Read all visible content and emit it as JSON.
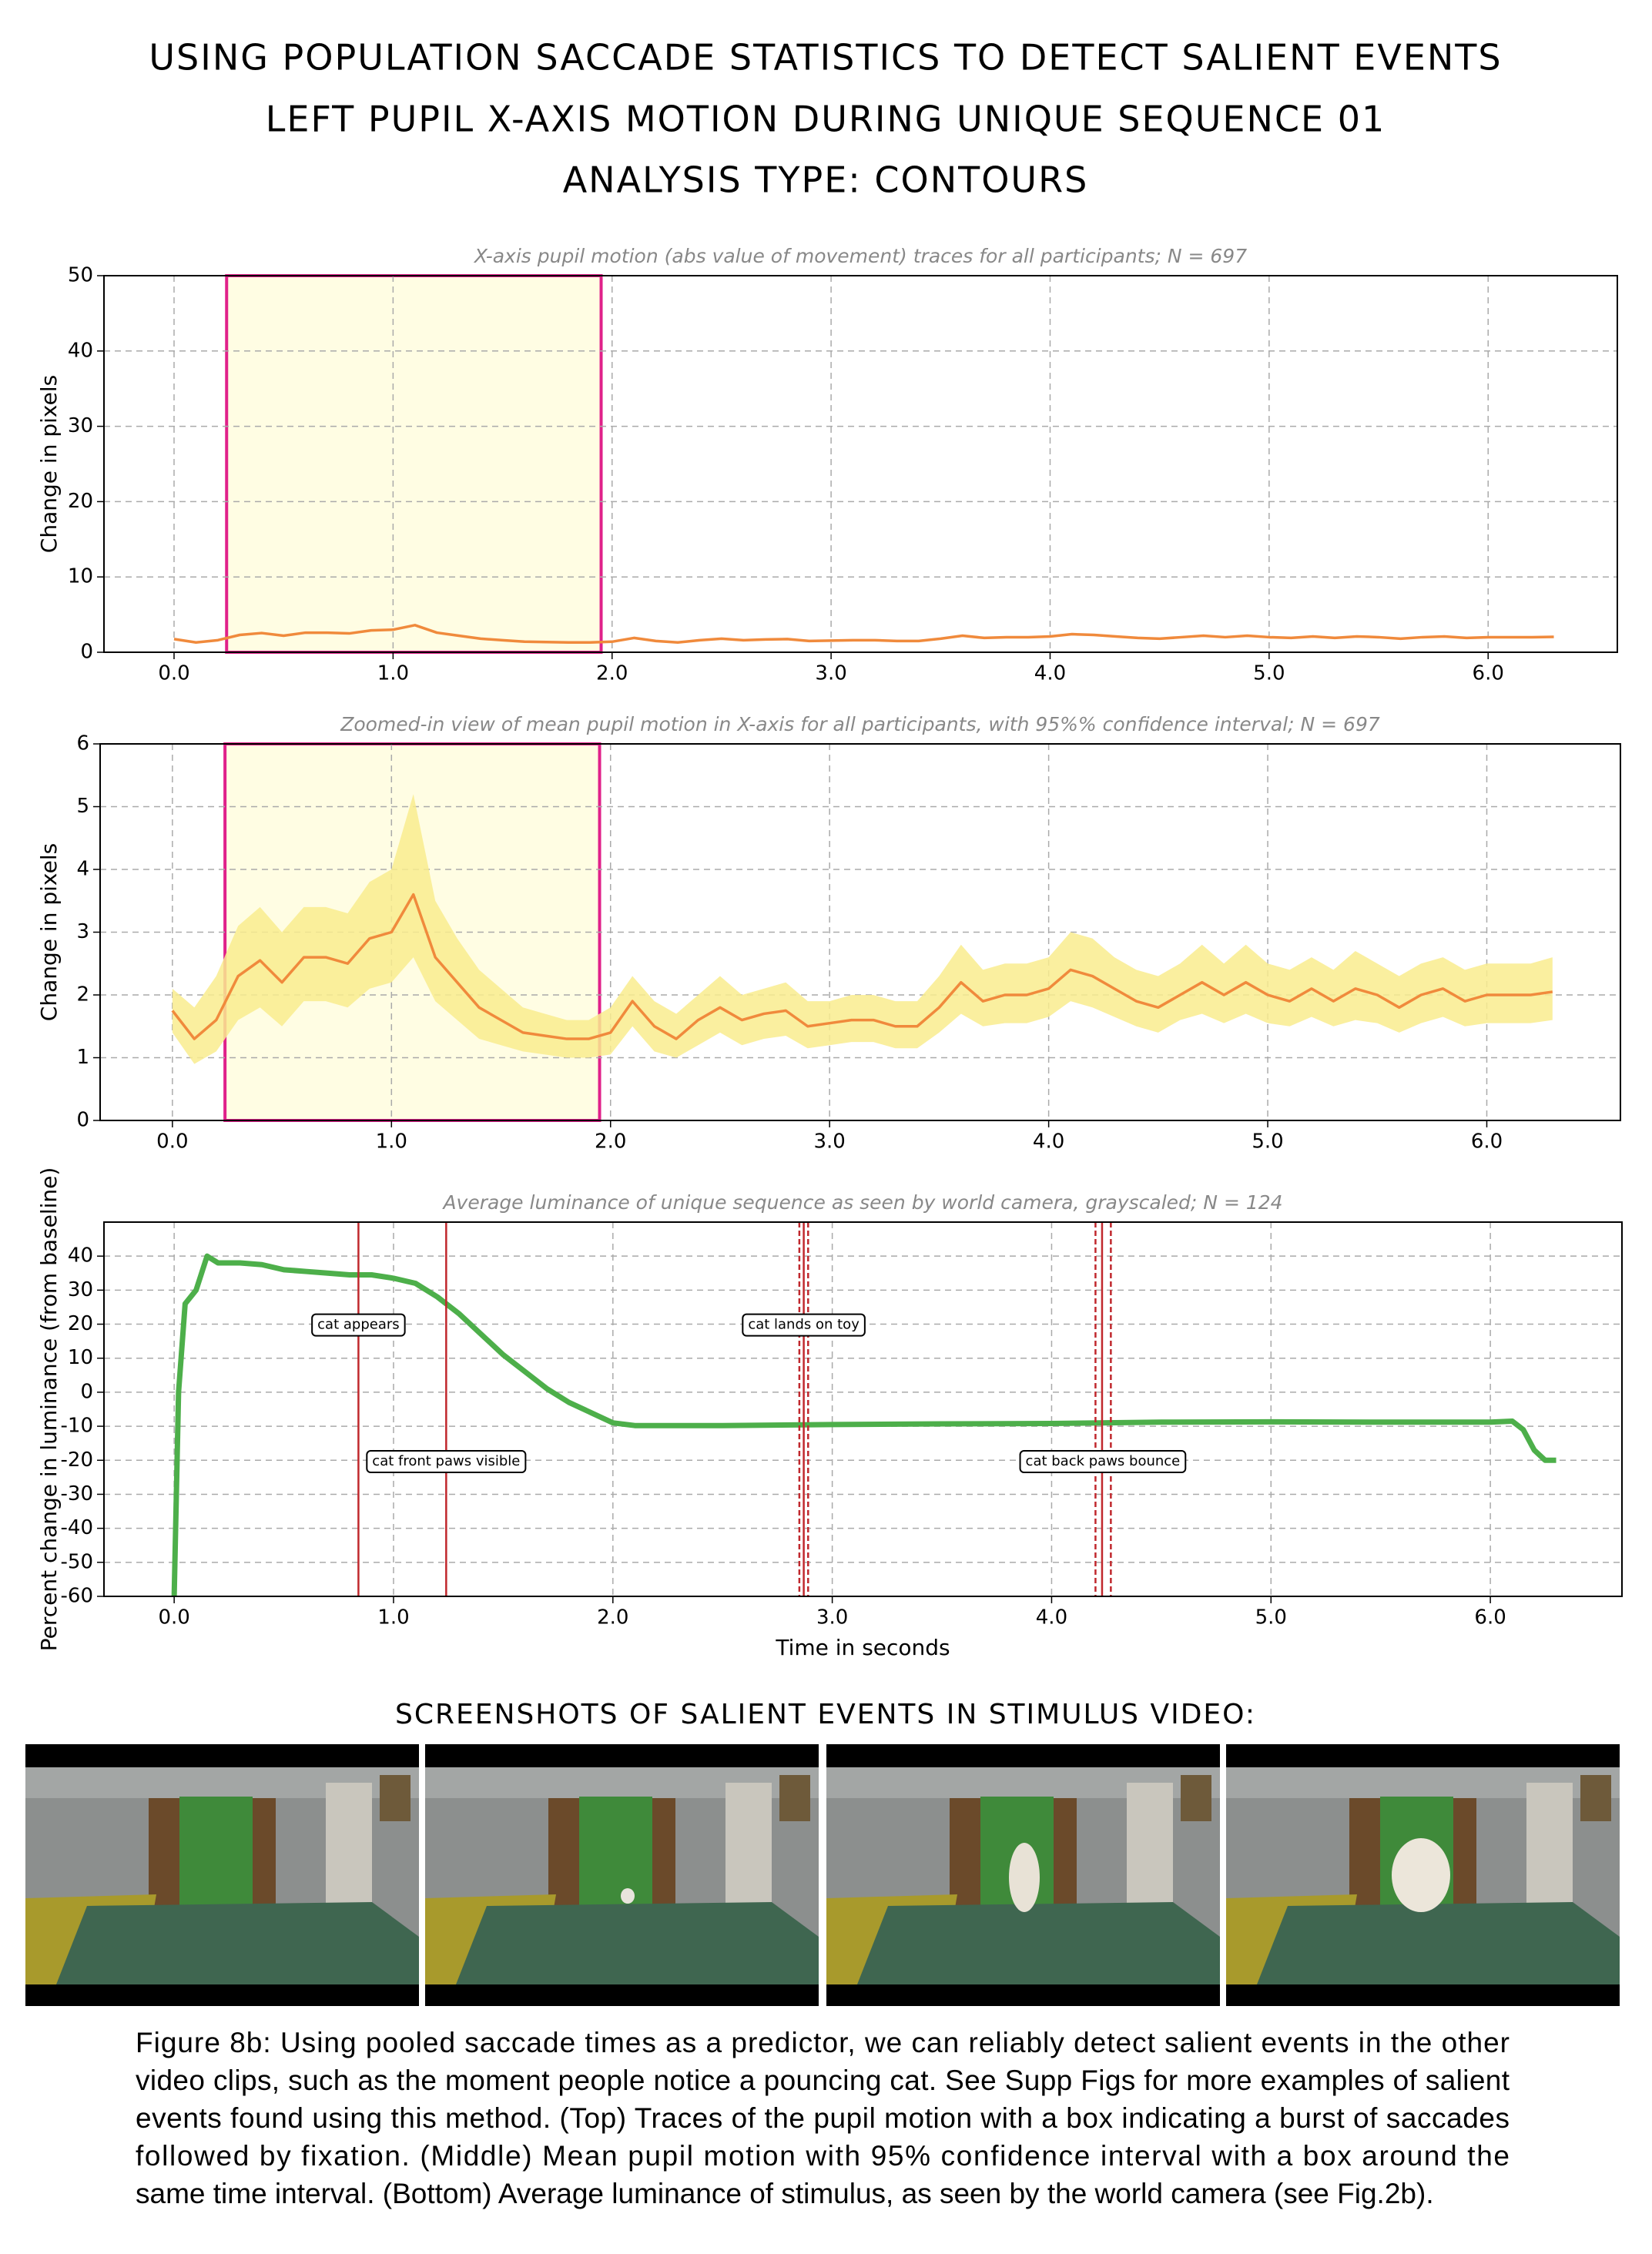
{
  "titles": [
    "USING POPULATION SACCADE STATISTICS TO DETECT SALIENT EVENTS",
    "LEFT PUPIL X-AXIS MOTION DURING UNIQUE SEQUENCE 01",
    "ANALYSIS TYPE: CONTOURS"
  ],
  "chart_data": [
    {
      "type": "line",
      "subtitle": "X-axis pupil motion (abs value of movement) traces for all participants; N = 697",
      "ylabel": "Change in pixels",
      "x": [
        0.0,
        0.1,
        0.2,
        0.3,
        0.4,
        0.5,
        0.6,
        0.7,
        0.8,
        0.9,
        1.0,
        1.1,
        1.2,
        1.3,
        1.4,
        1.5,
        1.6,
        1.7,
        1.8,
        1.9,
        2.0,
        2.1,
        2.2,
        2.3,
        2.4,
        2.5,
        2.6,
        2.7,
        2.8,
        2.9,
        3.0,
        3.1,
        3.2,
        3.3,
        3.4,
        3.5,
        3.6,
        3.7,
        3.8,
        3.9,
        4.0,
        4.1,
        4.2,
        4.3,
        4.4,
        4.5,
        4.6,
        4.7,
        4.8,
        4.9,
        5.0,
        5.1,
        5.2,
        5.3,
        5.4,
        5.5,
        5.6,
        5.7,
        5.8,
        5.9,
        6.0,
        6.1,
        6.2,
        6.3
      ],
      "series": [
        {
          "color": "#f08a3c",
          "values": [
            1.75,
            1.3,
            1.6,
            2.3,
            2.55,
            2.2,
            2.6,
            2.6,
            2.5,
            2.9,
            3.0,
            3.6,
            2.6,
            2.2,
            1.8,
            1.6,
            1.4,
            1.35,
            1.3,
            1.3,
            1.4,
            1.9,
            1.5,
            1.3,
            1.6,
            1.8,
            1.6,
            1.7,
            1.75,
            1.5,
            1.55,
            1.6,
            1.6,
            1.5,
            1.5,
            1.8,
            2.2,
            1.9,
            2.0,
            2.0,
            2.1,
            2.4,
            2.3,
            2.1,
            1.9,
            1.8,
            2.0,
            2.2,
            2.0,
            2.2,
            2.0,
            1.9,
            2.1,
            1.9,
            2.1,
            2.0,
            1.8,
            2.0,
            2.1,
            1.9,
            2.0,
            2.0,
            2.0,
            2.05
          ]
        }
      ],
      "highlight_box": {
        "x": [
          0.24,
          1.95
        ],
        "color": "#e0218a",
        "fill": "#fffde3"
      },
      "xlim": [
        -0.32,
        6.59
      ],
      "ylim": [
        0,
        50
      ],
      "xticks": [
        {
          "value": 0,
          "label": "0.0"
        },
        {
          "value": 1,
          "label": "1.0"
        },
        {
          "value": 2,
          "label": "2.0"
        },
        {
          "value": 3,
          "label": "3.0"
        },
        {
          "value": 4,
          "label": "4.0"
        },
        {
          "value": 5,
          "label": "5.0"
        },
        {
          "value": 6,
          "label": "6.0"
        }
      ],
      "yticks": [
        0,
        10,
        20,
        30,
        40,
        50
      ],
      "grid": true
    },
    {
      "type": "line",
      "subtitle": "Zoomed-in view of mean pupil motion in X-axis for all participants, with 95%% confidence interval; N = 697",
      "ylabel": "Change in pixels",
      "x": [
        0.0,
        0.1,
        0.2,
        0.3,
        0.4,
        0.5,
        0.6,
        0.7,
        0.8,
        0.9,
        1.0,
        1.1,
        1.2,
        1.3,
        1.4,
        1.5,
        1.6,
        1.7,
        1.8,
        1.9,
        2.0,
        2.1,
        2.2,
        2.3,
        2.4,
        2.5,
        2.6,
        2.7,
        2.8,
        2.9,
        3.0,
        3.1,
        3.2,
        3.3,
        3.4,
        3.5,
        3.6,
        3.7,
        3.8,
        3.9,
        4.0,
        4.1,
        4.2,
        4.3,
        4.4,
        4.5,
        4.6,
        4.7,
        4.8,
        4.9,
        5.0,
        5.1,
        5.2,
        5.3,
        5.4,
        5.5,
        5.6,
        5.7,
        5.8,
        5.9,
        6.0,
        6.1,
        6.2,
        6.3
      ],
      "series": [
        {
          "color": "#f08a3c",
          "band_color": "#f9ec8e",
          "values": [
            1.75,
            1.3,
            1.6,
            2.3,
            2.55,
            2.2,
            2.6,
            2.6,
            2.5,
            2.9,
            3.0,
            3.6,
            2.6,
            2.2,
            1.8,
            1.6,
            1.4,
            1.35,
            1.3,
            1.3,
            1.4,
            1.9,
            1.5,
            1.3,
            1.6,
            1.8,
            1.6,
            1.7,
            1.75,
            1.5,
            1.55,
            1.6,
            1.6,
            1.5,
            1.5,
            1.8,
            2.2,
            1.9,
            2.0,
            2.0,
            2.1,
            2.4,
            2.3,
            2.1,
            1.9,
            1.8,
            2.0,
            2.2,
            2.0,
            2.2,
            2.0,
            1.9,
            2.1,
            1.9,
            2.1,
            2.0,
            1.8,
            2.0,
            2.1,
            1.9,
            2.0,
            2.0,
            2.0,
            2.05
          ],
          "ci_upper": [
            2.1,
            1.8,
            2.3,
            3.1,
            3.4,
            3.0,
            3.4,
            3.4,
            3.3,
            3.8,
            4.0,
            5.2,
            3.5,
            2.9,
            2.4,
            2.1,
            1.8,
            1.7,
            1.6,
            1.6,
            1.8,
            2.3,
            1.9,
            1.7,
            2.0,
            2.3,
            2.0,
            2.1,
            2.2,
            1.9,
            1.9,
            2.0,
            2.0,
            1.9,
            1.9,
            2.3,
            2.8,
            2.4,
            2.5,
            2.5,
            2.6,
            3.0,
            2.9,
            2.6,
            2.4,
            2.3,
            2.5,
            2.8,
            2.5,
            2.8,
            2.5,
            2.4,
            2.6,
            2.4,
            2.7,
            2.5,
            2.3,
            2.5,
            2.6,
            2.4,
            2.5,
            2.5,
            2.5,
            2.6
          ],
          "ci_lower": [
            1.4,
            0.9,
            1.1,
            1.6,
            1.8,
            1.5,
            1.9,
            1.9,
            1.8,
            2.1,
            2.2,
            2.6,
            1.9,
            1.6,
            1.3,
            1.2,
            1.1,
            1.05,
            1.0,
            1.0,
            1.05,
            1.5,
            1.1,
            1.0,
            1.2,
            1.4,
            1.2,
            1.3,
            1.35,
            1.15,
            1.2,
            1.25,
            1.25,
            1.15,
            1.15,
            1.4,
            1.7,
            1.5,
            1.55,
            1.55,
            1.65,
            1.9,
            1.8,
            1.65,
            1.5,
            1.4,
            1.6,
            1.7,
            1.55,
            1.7,
            1.55,
            1.5,
            1.65,
            1.5,
            1.6,
            1.55,
            1.4,
            1.55,
            1.65,
            1.5,
            1.55,
            1.55,
            1.55,
            1.6
          ]
        }
      ],
      "highlight_box": {
        "x": [
          0.24,
          1.95
        ],
        "color": "#e0218a",
        "fill": "#fffde3"
      },
      "xlim": [
        -0.33,
        6.61
      ],
      "ylim": [
        0,
        6
      ],
      "xticks": [
        {
          "value": 0,
          "label": "0.0"
        },
        {
          "value": 1,
          "label": "1.0"
        },
        {
          "value": 2,
          "label": "2.0"
        },
        {
          "value": 3,
          "label": "3.0"
        },
        {
          "value": 4,
          "label": "4.0"
        },
        {
          "value": 5,
          "label": "5.0"
        },
        {
          "value": 6,
          "label": "6.0"
        }
      ],
      "yticks": [
        0,
        1,
        2,
        3,
        4,
        5,
        6
      ],
      "grid": true
    },
    {
      "type": "line",
      "subtitle": "Average luminance of unique sequence as seen by world camera, grayscaled; N = 124",
      "ylabel": "Percent change in luminance (from baseline)",
      "xlabel": "Time in seconds",
      "x": [
        0.0,
        0.02,
        0.05,
        0.1,
        0.15,
        0.2,
        0.3,
        0.4,
        0.5,
        0.6,
        0.7,
        0.8,
        0.9,
        1.0,
        1.1,
        1.2,
        1.3,
        1.4,
        1.5,
        1.6,
        1.7,
        1.8,
        1.9,
        2.0,
        2.1,
        2.5,
        3.0,
        3.5,
        4.0,
        4.5,
        5.0,
        5.5,
        6.0,
        6.1,
        6.15,
        6.2,
        6.25,
        6.3
      ],
      "series": [
        {
          "color": "#4daf4a",
          "values": [
            -60,
            0,
            26,
            30,
            40,
            38,
            38,
            37.5,
            36,
            35.5,
            35,
            34.5,
            34.5,
            33.5,
            32,
            28,
            23,
            17,
            11,
            6,
            1,
            -3,
            -6,
            -9,
            -9.8,
            -9.8,
            -9.5,
            -9.3,
            -9.2,
            -8.8,
            -8.7,
            -8.8,
            -8.8,
            -8.5,
            -11,
            -17,
            -20,
            -20
          ]
        }
      ],
      "events": [
        {
          "label": "cat appears",
          "times": [
            0.84
          ]
        },
        {
          "label": "cat front paws visible",
          "times": [
            1.24
          ]
        },
        {
          "label": "cat lands on toy",
          "times": [
            2.85,
            2.87,
            2.89
          ]
        },
        {
          "label": "cat back paws bounce",
          "times": [
            4.2,
            4.23,
            4.27
          ]
        }
      ],
      "event_color": "#c0282d",
      "xlim": [
        -0.32,
        6.6
      ],
      "ylim": [
        -60,
        50
      ],
      "xticks": [
        {
          "value": 0,
          "label": "0.0"
        },
        {
          "value": 1,
          "label": "1.0"
        },
        {
          "value": 2,
          "label": "2.0"
        },
        {
          "value": 3,
          "label": "3.0"
        },
        {
          "value": 4,
          "label": "4.0"
        },
        {
          "value": 5,
          "label": "5.0"
        },
        {
          "value": 6,
          "label": "6.0"
        }
      ],
      "yticks": [
        -60,
        -50,
        -40,
        -30,
        -20,
        -10,
        0,
        10,
        20,
        30,
        40
      ],
      "grid": true
    }
  ],
  "screenshots_heading": "SCREENSHOTS OF SALIENT EVENTS IN STIMULUS VIDEO:",
  "caption": [
    "Figure 8b: Using pooled saccade times as a predictor, we can reliably detect salient events in the other",
    "video clips, such as the moment people notice a pouncing cat. See Supp Figs for more examples of salient",
    "events found using this method. (Top) Traces of the pupil motion with a box indicating a burst of saccades",
    "followed by fixation. (Middle) Mean pupil motion with 95% confidence interval with a box around the",
    "same time interval.  (Bottom) Average luminance of stimulus, as seen by the world camera (see Fig.2b)."
  ]
}
